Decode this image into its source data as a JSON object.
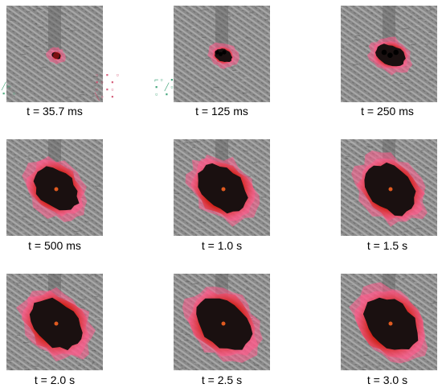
{
  "frames": [
    {
      "label": "t = 35.7 ms",
      "burn_scale": 0.14,
      "holes": 0
    },
    {
      "label": "t = 125 ms",
      "burn_scale": 0.28,
      "holes": 3
    },
    {
      "label": "t = 250 ms",
      "burn_scale": 0.46,
      "holes": 3
    },
    {
      "label": "t = 500 ms",
      "burn_scale": 0.78,
      "holes": 0
    },
    {
      "label": "t = 1.0 s",
      "burn_scale": 0.86,
      "holes": 0
    },
    {
      "label": "t = 1.5 s",
      "burn_scale": 0.9,
      "holes": 0
    },
    {
      "label": "t = 2.0 s",
      "burn_scale": 0.92,
      "holes": 0
    },
    {
      "label": "t = 2.5 s",
      "burn_scale": 0.94,
      "holes": 0
    },
    {
      "label": "t = 3.0 s",
      "burn_scale": 0.95,
      "holes": 0
    }
  ],
  "colors": {
    "fabric": "#8a8a8a",
    "char": "#1a1010",
    "burn_edge": "#d0241c",
    "glow": "#ff5a8a"
  }
}
